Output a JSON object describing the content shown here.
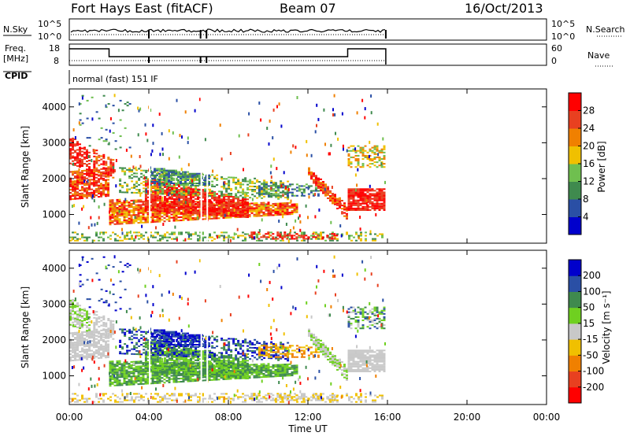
{
  "header": {
    "station": "Fort Hays East (fitACF)",
    "beam": "Beam 07",
    "date": "16/Oct/2013"
  },
  "top_panels": {
    "nsky": {
      "label": "N.Sky",
      "right_label": "N.Search",
      "left_ticks": [
        "10^5",
        "10^0"
      ],
      "right_ticks": [
        "10^5",
        "10^0"
      ]
    },
    "freq": {
      "label_lines": [
        "Freq.",
        "[MHz]"
      ],
      "right_label": "Nave",
      "left_ticks": [
        "18",
        "8"
      ],
      "right_ticks": [
        "60",
        "0"
      ]
    },
    "cpid": {
      "label": "CPID",
      "text": "normal (fast) 151 IF"
    }
  },
  "colors": {
    "power_scale": [
      "#0000cc",
      "#2a4fa5",
      "#3f8a4e",
      "#6fbf4f",
      "#f0c000",
      "#f08000",
      "#e84020",
      "#ff0000"
    ],
    "velocity_scale": [
      "#ff0000",
      "#e84020",
      "#f08000",
      "#f0c000",
      "#c8c8c8",
      "#6fd020",
      "#3f8a4e",
      "#2a4fa5",
      "#0000cc"
    ]
  },
  "chart_data": [
    {
      "type": "heatmap",
      "panel": "power",
      "ylabel": "Slant Range [km]",
      "yticks": [
        "1000",
        "2000",
        "3000",
        "4000"
      ],
      "ylim": [
        200,
        4500
      ],
      "xlim": [
        "00:00",
        "24:00"
      ],
      "colorbar": {
        "label": "Power [dB]",
        "ticks": [
          "4",
          "8",
          "12",
          "16",
          "20",
          "24",
          "28"
        ],
        "range": [
          0,
          32
        ]
      },
      "data_coverage": {
        "start": "00:00",
        "end": "15:55"
      }
    },
    {
      "type": "heatmap",
      "panel": "velocity",
      "ylabel": "Slant Range [km]",
      "yticks": [
        "1000",
        "2000",
        "3000",
        "4000"
      ],
      "ylim": [
        200,
        4500
      ],
      "xlim": [
        "00:00",
        "24:00"
      ],
      "xlabel": "Time UT",
      "xticks": [
        "00:00",
        "04:00",
        "08:00",
        "12:00",
        "16:00",
        "20:00",
        "00:00"
      ],
      "colorbar": {
        "label": "Velocity [m s⁻¹]",
        "ticks": [
          "200",
          "100",
          "50",
          "15",
          "-15",
          "-50",
          "-100",
          "-200"
        ],
        "range": [
          -250,
          250
        ]
      },
      "data_coverage": {
        "start": "00:00",
        "end": "15:55"
      }
    }
  ]
}
